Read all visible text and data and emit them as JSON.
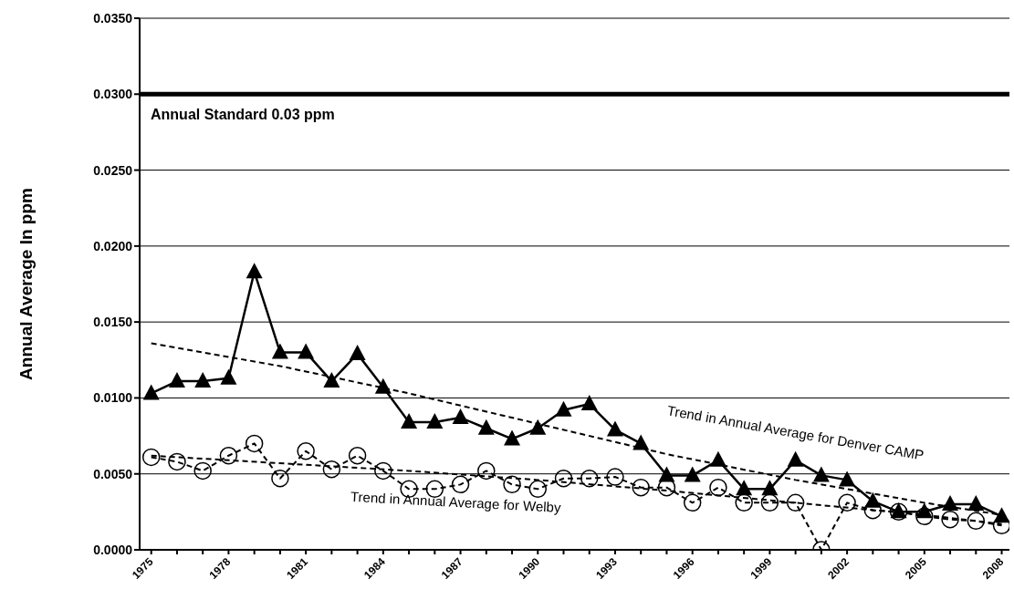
{
  "chart_data": {
    "type": "line",
    "ylabel": "Annual Average In ppm",
    "x": [
      1975,
      1976,
      1977,
      1978,
      1979,
      1980,
      1981,
      1982,
      1983,
      1984,
      1985,
      1986,
      1987,
      1988,
      1989,
      1990,
      1991,
      1992,
      1993,
      1994,
      1995,
      1996,
      1997,
      1998,
      1999,
      2000,
      2001,
      2002,
      2003,
      2004,
      2005,
      2006,
      2007,
      2008
    ],
    "series": [
      {
        "color": "#000000",
        "marker": "triangle",
        "line_style": "solid",
        "values": [
          0.0103,
          0.0111,
          0.0111,
          0.0113,
          0.0183,
          0.013,
          0.013,
          0.0111,
          0.0129,
          0.0107,
          0.0084,
          0.0084,
          0.0087,
          0.008,
          0.0073,
          0.008,
          0.0092,
          0.0096,
          0.0079,
          0.007,
          0.0049,
          0.0049,
          0.0059,
          0.004,
          0.004,
          0.0059,
          0.0049,
          0.0046,
          0.0032,
          0.0025,
          0.0025,
          0.003,
          0.003,
          0.0022
        ]
      },
      {
        "color": "#000000",
        "marker": "circle",
        "line_style": "dashed",
        "values": [
          0.0061,
          0.0058,
          0.0052,
          0.0062,
          0.007,
          0.0047,
          0.0065,
          0.0053,
          0.0062,
          0.0052,
          0.004,
          0.004,
          0.0043,
          0.0052,
          0.0043,
          0.004,
          0.0047,
          0.0047,
          0.0048,
          0.0041,
          0.0041,
          0.0031,
          0.0041,
          0.0031,
          0.0031,
          0.0031,
          0.0,
          0.0031,
          0.0026,
          0.0025,
          0.0022,
          0.002,
          0.0019,
          0.0016
        ]
      },
      {
        "name": "Trend in Annual Average for Denver CAMP",
        "color": "#000000",
        "marker": "none",
        "line_style": "dashed",
        "x": [
          1975,
          1980,
          1985,
          1990,
          1995,
          2000,
          2005,
          2008
        ],
        "values": [
          0.0136,
          0.0121,
          0.0103,
          0.0083,
          0.0063,
          0.0046,
          0.0031,
          0.0023
        ]
      },
      {
        "name": "Trend in Annual Average for Welby",
        "color": "#000000",
        "marker": "none",
        "line_style": "dashed",
        "x": [
          1975,
          1980,
          1985,
          1990,
          1995,
          2000,
          2005,
          2008
        ],
        "values": [
          0.0062,
          0.0057,
          0.0052,
          0.0046,
          0.0039,
          0.0031,
          0.0023,
          0.0017
        ]
      }
    ],
    "ref_lines": [
      {
        "axis": "y",
        "value": 0.03,
        "label": "Annual Standard 0.03 ppm",
        "color": "#000000"
      }
    ],
    "xlim": [
      1974.55,
      2008.3
    ],
    "xticks": [
      1975,
      {
        "value": 1976,
        "label": null
      },
      {
        "value": 1977,
        "label": null
      },
      1978,
      {
        "value": 1979,
        "label": null
      },
      {
        "value": 1980,
        "label": null
      },
      1981,
      {
        "value": 1982,
        "label": null
      },
      {
        "value": 1983,
        "label": null
      },
      1984,
      {
        "value": 1985,
        "label": null
      },
      {
        "value": 1986,
        "label": null
      },
      1987,
      {
        "value": 1988,
        "label": null
      },
      {
        "value": 1989,
        "label": null
      },
      1990,
      {
        "value": 1991,
        "label": null
      },
      {
        "value": 1992,
        "label": null
      },
      1993,
      {
        "value": 1994,
        "label": null
      },
      {
        "value": 1995,
        "label": null
      },
      1996,
      {
        "value": 1997,
        "label": null
      },
      {
        "value": 1998,
        "label": null
      },
      1999,
      {
        "value": 2000,
        "label": null
      },
      {
        "value": 2001,
        "label": null
      },
      2002,
      {
        "value": 2003,
        "label": null
      },
      {
        "value": 2004,
        "label": null
      },
      2005,
      {
        "value": 2006,
        "label": null
      },
      {
        "value": 2007,
        "label": null
      },
      2008
    ],
    "ylim": [
      0,
      0.035
    ],
    "yticks": [
      {
        "value": 0,
        "label": "0.0000"
      },
      {
        "value": 0.005,
        "label": "0.0050"
      },
      {
        "value": 0.01,
        "label": "0.0100"
      },
      {
        "value": 0.015,
        "label": "0.0150"
      },
      {
        "value": 0.02,
        "label": "0.0200"
      },
      {
        "value": 0.025,
        "label": "0.0250"
      },
      {
        "value": 0.03,
        "label": "0.0300"
      },
      {
        "value": 0.035,
        "label": "0.0350"
      }
    ],
    "grid": "y"
  }
}
